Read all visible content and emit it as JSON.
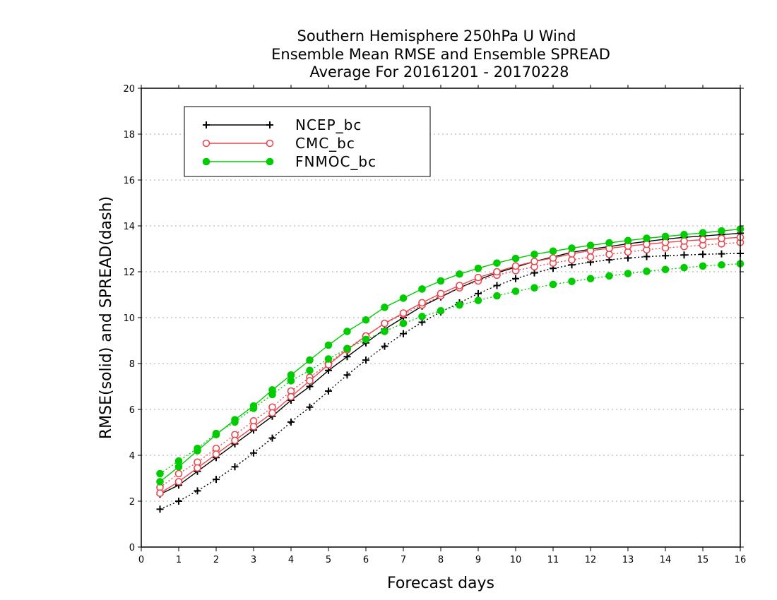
{
  "chart_data": {
    "type": "line",
    "title_lines": [
      "Southern Hemisphere 250hPa U Wind",
      "Ensemble Mean RMSE and Ensemble SPREAD",
      "Average For 20161201 - 20170228"
    ],
    "xlabel": "Forecast days",
    "ylabel": "RMSE(solid) and SPREAD(dash)",
    "xlim": [
      0,
      16
    ],
    "ylim": [
      0,
      20
    ],
    "x_ticks": [
      0,
      1,
      2,
      3,
      4,
      5,
      6,
      7,
      8,
      9,
      10,
      11,
      12,
      13,
      14,
      15,
      16
    ],
    "y_ticks": [
      0,
      2,
      4,
      6,
      8,
      10,
      12,
      14,
      16,
      18,
      20
    ],
    "grid": "horizontal dotted",
    "legend_position": "top-left",
    "x": [
      0.5,
      1,
      1.5,
      2,
      2.5,
      3,
      3.5,
      4,
      4.5,
      5,
      5.5,
      6,
      6.5,
      7,
      7.5,
      8,
      8.5,
      9,
      9.5,
      10,
      10.5,
      11,
      11.5,
      12,
      12.5,
      13,
      13.5,
      14,
      14.5,
      15,
      15.5,
      16
    ],
    "series": [
      {
        "name": "NCEP_bc",
        "color": "#000000",
        "marker": "plus",
        "rmse": [
          2.3,
          2.7,
          3.3,
          3.9,
          4.5,
          5.1,
          5.7,
          6.4,
          7.0,
          7.7,
          8.3,
          8.9,
          9.5,
          10.0,
          10.5,
          10.9,
          11.3,
          11.65,
          11.95,
          12.2,
          12.45,
          12.65,
          12.85,
          12.98,
          13.1,
          13.22,
          13.32,
          13.42,
          13.5,
          13.56,
          13.62,
          13.68
        ],
        "spread": [
          1.65,
          2.0,
          2.45,
          2.95,
          3.5,
          4.1,
          4.75,
          5.45,
          6.1,
          6.8,
          7.5,
          8.15,
          8.75,
          9.3,
          9.8,
          10.25,
          10.65,
          11.05,
          11.4,
          11.7,
          11.95,
          12.15,
          12.3,
          12.42,
          12.52,
          12.6,
          12.66,
          12.7,
          12.73,
          12.76,
          12.78,
          12.8
        ]
      },
      {
        "name": "CMC_bc",
        "color": "#e8484e",
        "marker": "open-circle",
        "rmse": [
          2.35,
          2.85,
          3.45,
          4.05,
          4.65,
          5.25,
          5.85,
          6.55,
          7.25,
          7.95,
          8.6,
          9.2,
          9.75,
          10.2,
          10.65,
          11.05,
          11.4,
          11.75,
          12.0,
          12.25,
          12.45,
          12.6,
          12.78,
          12.92,
          13.02,
          13.12,
          13.2,
          13.28,
          13.34,
          13.4,
          13.45,
          13.5
        ],
        "spread": [
          2.6,
          3.2,
          3.7,
          4.3,
          4.9,
          5.5,
          6.1,
          6.8,
          7.4,
          8.0,
          8.65,
          9.2,
          9.75,
          10.15,
          10.55,
          10.95,
          11.3,
          11.6,
          11.85,
          12.05,
          12.22,
          12.38,
          12.52,
          12.64,
          12.76,
          12.86,
          12.96,
          13.04,
          13.1,
          13.16,
          13.22,
          13.28
        ]
      },
      {
        "name": "FNMOC_bc",
        "color": "#00cc00",
        "marker": "filled-circle",
        "rmse": [
          2.85,
          3.5,
          4.2,
          4.9,
          5.55,
          6.15,
          6.85,
          7.5,
          8.15,
          8.8,
          9.4,
          9.9,
          10.45,
          10.85,
          11.25,
          11.6,
          11.9,
          12.15,
          12.38,
          12.58,
          12.76,
          12.9,
          13.03,
          13.15,
          13.26,
          13.36,
          13.46,
          13.54,
          13.62,
          13.7,
          13.78,
          13.86
        ],
        "spread": [
          3.2,
          3.75,
          4.3,
          4.95,
          5.45,
          6.05,
          6.65,
          7.25,
          7.7,
          8.2,
          8.65,
          9.05,
          9.4,
          9.75,
          10.05,
          10.3,
          10.55,
          10.75,
          10.95,
          11.15,
          11.3,
          11.45,
          11.58,
          11.7,
          11.82,
          11.92,
          12.02,
          12.1,
          12.18,
          12.25,
          12.3,
          12.35
        ]
      }
    ]
  }
}
